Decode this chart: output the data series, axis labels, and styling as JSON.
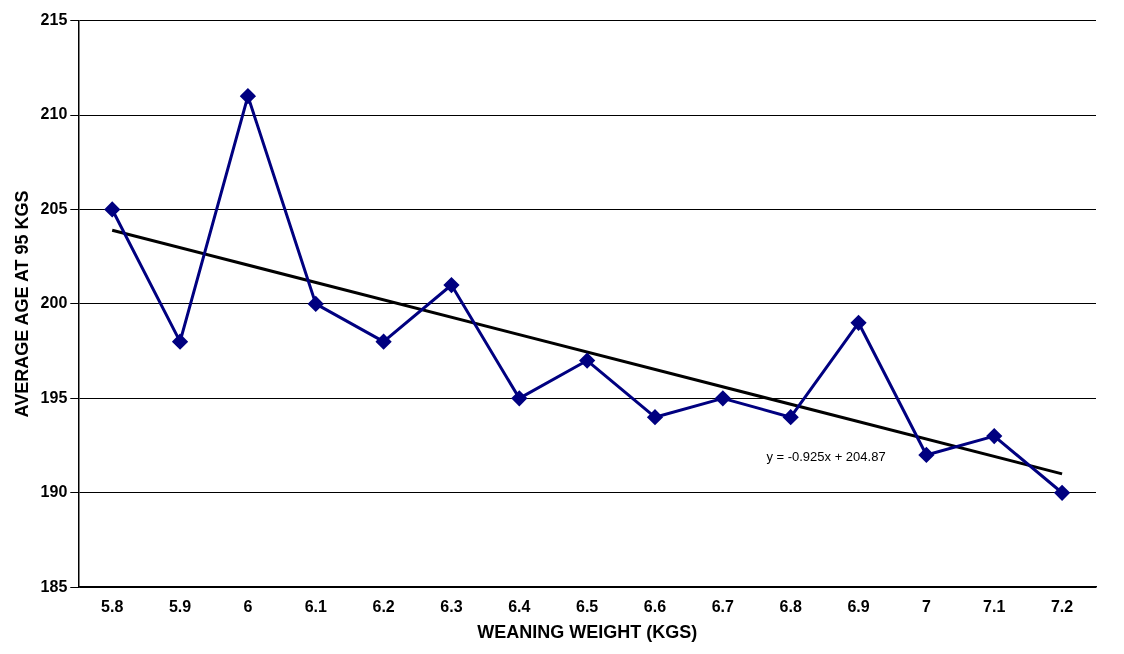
{
  "chart_data": {
    "type": "line",
    "xlabel": "WEANING WEIGHT (KGS)",
    "ylabel": "AVERAGE AGE AT 95 KGS",
    "categories": [
      "5.8",
      "5.9",
      "6",
      "6.1",
      "6.2",
      "6.3",
      "6.4",
      "6.5",
      "6.6",
      "6.7",
      "6.8",
      "6.9",
      "7",
      "7.1",
      "7.2"
    ],
    "series": [
      {
        "color": "#000080",
        "marker": "diamond",
        "values": [
          205,
          198,
          211,
          200,
          198,
          201,
          195,
          197,
          194,
          195,
          194,
          199,
          192,
          193,
          190
        ]
      },
      {
        "type": "line",
        "color": "#000000",
        "marker": "none",
        "x": [
          "5.8",
          "7.2"
        ],
        "values": [
          203.9,
          191.0
        ]
      }
    ],
    "ylim": [
      185,
      215
    ],
    "yticks": [
      185,
      190,
      195,
      200,
      205,
      210,
      215
    ],
    "grid": "y",
    "annotations": [
      "y = -0.925x + 204.87"
    ]
  }
}
